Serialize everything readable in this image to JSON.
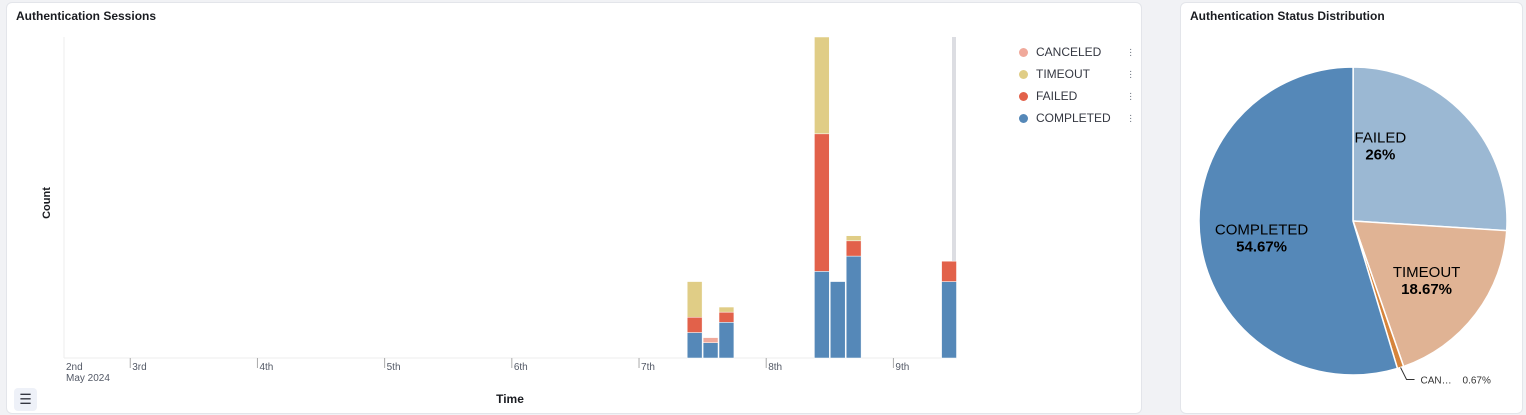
{
  "sessions_panel": {
    "title": "Authentication Sessions",
    "list_icon": "list-icon"
  },
  "distribution_panel": {
    "title": "Authentication Status Distribution"
  },
  "chart_data": [
    {
      "type": "bar",
      "stacked": true,
      "title": "Authentication Sessions",
      "xlabel": "Time",
      "ylabel": "Count",
      "x_ticks": [
        "2nd",
        "3rd",
        "4th",
        "5th",
        "6th",
        "7th",
        "8th",
        "9th"
      ],
      "x_tick_sub": "May 2024",
      "x_range": [
        "2024-05-02T11:30",
        "2024-05-09T12:00"
      ],
      "x": [
        "2024-05-07T09:00",
        "2024-05-07T12:00",
        "2024-05-07T15:00",
        "2024-05-08T09:00",
        "2024-05-08T12:00",
        "2024-05-08T15:00",
        "2024-05-09T09:00"
      ],
      "series": [
        {
          "name": "COMPLETED",
          "color": "#5588b8",
          "values": [
            5,
            3,
            7,
            17,
            15,
            20,
            15
          ]
        },
        {
          "name": "FAILED",
          "color": "#e2614a",
          "values": [
            3,
            0,
            2,
            27,
            0,
            3,
            4
          ]
        },
        {
          "name": "TIMEOUT",
          "color": "#e0cd86",
          "values": [
            7,
            0,
            1,
            19,
            0,
            1,
            0
          ]
        },
        {
          "name": "CANCELED",
          "color": "#f0a99b",
          "values": [
            0,
            1,
            0,
            0,
            0,
            0,
            0
          ]
        }
      ],
      "legend": [
        "CANCELED",
        "TIMEOUT",
        "FAILED",
        "COMPLETED"
      ],
      "legend_placement": "top-right",
      "grid": false
    },
    {
      "type": "pie",
      "slices": [
        {
          "label": "FAILED",
          "value": 26,
          "display": "26%",
          "color": "#9bb8d3"
        },
        {
          "label": "TIMEOUT",
          "value": 18.67,
          "display": "18.67%",
          "color": "#e0b394"
        },
        {
          "label": "CANCELED",
          "short": "CAN…",
          "value": 0.67,
          "display": "0.67%",
          "color": "#d6843b"
        },
        {
          "label": "COMPLETED",
          "value": 54.67,
          "display": "54.67%",
          "color": "#5588b8"
        }
      ]
    }
  ]
}
